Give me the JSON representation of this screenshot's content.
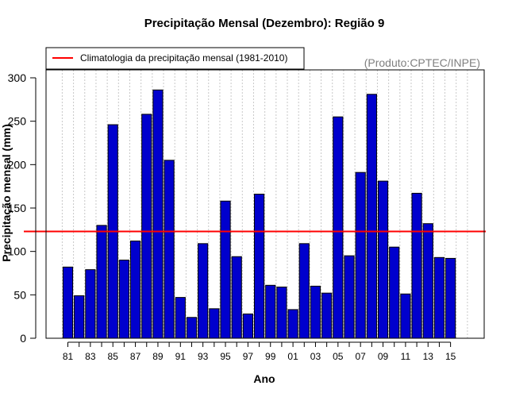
{
  "chart_data": {
    "type": "bar",
    "title": "Precipitação Mensal (Dezembro): Região 9",
    "xlabel": "Ano",
    "ylabel": "Precipitação mensal (mm)",
    "ylim": [
      0,
      330
    ],
    "yticks": [
      0,
      50,
      100,
      150,
      200,
      250,
      300
    ],
    "categories": [
      "81",
      "82",
      "83",
      "84",
      "85",
      "86",
      "87",
      "88",
      "89",
      "90",
      "91",
      "92",
      "93",
      "94",
      "95",
      "96",
      "97",
      "98",
      "99",
      "00",
      "01",
      "02",
      "03",
      "04",
      "05",
      "06",
      "07",
      "08",
      "09",
      "10",
      "11",
      "12",
      "13",
      "14",
      "15"
    ],
    "xtick_labels": [
      "81",
      "83",
      "85",
      "87",
      "89",
      "91",
      "93",
      "95",
      "97",
      "99",
      "01",
      "03",
      "05",
      "07",
      "09",
      "11",
      "13",
      "15"
    ],
    "values": [
      82,
      49,
      79,
      130,
      246,
      90,
      112,
      258,
      286,
      205,
      47,
      24,
      109,
      34,
      158,
      94,
      28,
      166,
      61,
      59,
      33,
      109,
      60,
      52,
      255,
      95,
      191,
      281,
      181,
      105,
      51,
      167,
      132,
      93,
      92
    ],
    "climatology": 123,
    "legend": {
      "label": "Climatologia da precipitação mensal (1981-2010)",
      "position": "top-left"
    },
    "credit": "(Produto:CPTEC/INPE)",
    "colors": {
      "bar": "#0000cd",
      "bar_edge": "#000000",
      "climatology": "#ff0000",
      "grid": "#c8c8c8"
    },
    "grid": true
  }
}
